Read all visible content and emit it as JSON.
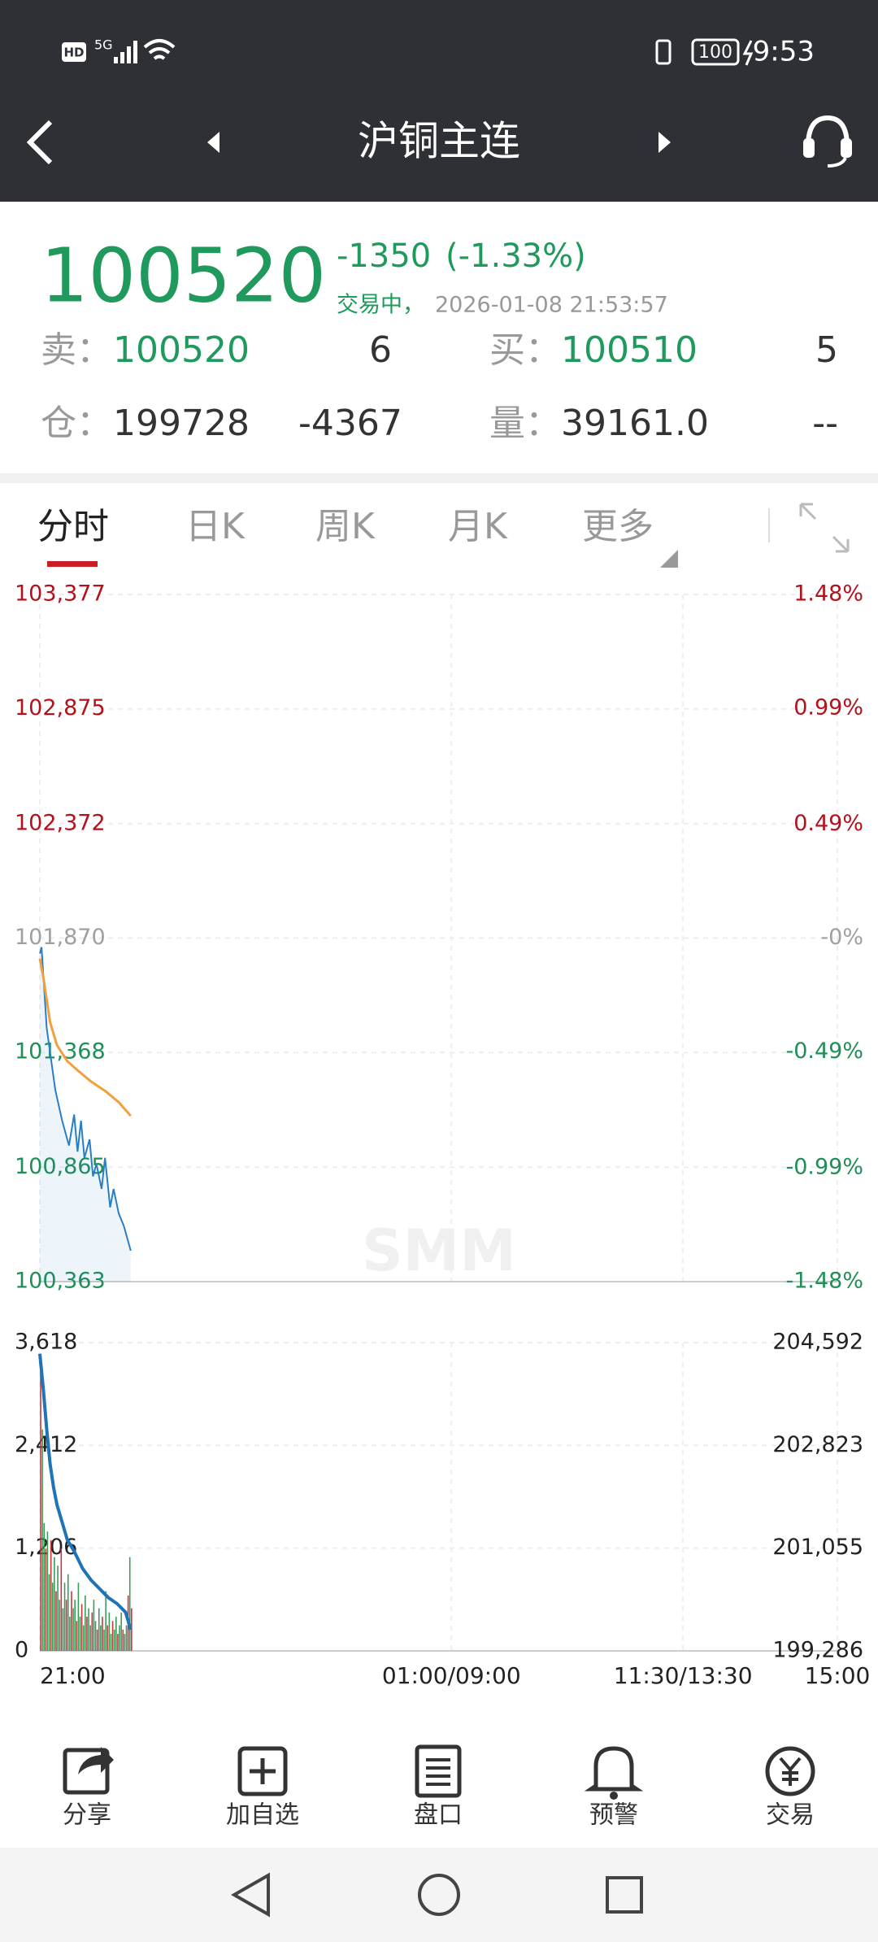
{
  "status_bar": {
    "network": "HD",
    "signal": "5G",
    "battery": "100",
    "time": "9:53"
  },
  "header": {
    "title": "沪铜主连"
  },
  "quote": {
    "price": "100520",
    "change": "-1350",
    "change_pct": "(-1.33%)",
    "status": "交易中，",
    "timestamp": "2026-01-08 21:53:57",
    "ask_label": "卖：",
    "ask_price": "100520",
    "ask_size": "6",
    "bid_label": "买：",
    "bid_price": "100510",
    "bid_size": "5",
    "oi_label": "仓：",
    "oi": "199728",
    "oi_change": "-4367",
    "volume_label": "量：",
    "volume": "39161.0",
    "extra": "--"
  },
  "tabs": [
    "分时",
    "日K",
    "周K",
    "月K",
    "更多"
  ],
  "chart": {
    "xlim": [
      0,
      465
    ],
    "xticks": [
      {
        "value": 0,
        "label": "21:00"
      },
      {
        "value": 240,
        "label": "01:00/09:00"
      },
      {
        "value": 375,
        "label": "11:30/13:30"
      },
      {
        "value": 465,
        "label": "15:00"
      }
    ],
    "watermark": "SMM",
    "up_color": "#b3121c",
    "down_color": "#1f8f57",
    "flat_color": "#a0a0a0",
    "price": {
      "type": "line",
      "ylim": [
        100363,
        103377
      ],
      "yticks": [
        {
          "value": 100363,
          "label": "100,363"
        },
        {
          "value": 100865,
          "label": "100,865"
        },
        {
          "value": 101368,
          "label": "101,368"
        },
        {
          "value": 101870,
          "label": "101,870"
        },
        {
          "value": 102372,
          "label": "102,372"
        },
        {
          "value": 102875,
          "label": "102,875"
        },
        {
          "value": 103377,
          "label": "103,377"
        }
      ],
      "y2lim": [
        -1.48,
        1.48
      ],
      "y2ticks": [
        {
          "value": -1.48,
          "label": "-1.48%"
        },
        {
          "value": -0.99,
          "label": "-0.99%"
        },
        {
          "value": -0.49,
          "label": "-0.49%"
        },
        {
          "value": 0,
          "label": "-0%"
        },
        {
          "value": 0.49,
          "label": "0.49%"
        },
        {
          "value": 0.99,
          "label": "0.99%"
        },
        {
          "value": 1.48,
          "label": "1.48%"
        }
      ],
      "x": [
        0,
        1,
        4,
        7,
        9,
        13,
        17,
        20,
        22,
        24,
        26,
        29,
        31,
        33,
        36,
        38,
        41,
        43,
        46,
        49,
        51,
        53
      ],
      "series": [
        {
          "color": "#2a7ec4",
          "values": [
            101802,
            101830,
            101476,
            101313,
            101205,
            101069,
            100960,
            101096,
            100933,
            101069,
            100906,
            100987,
            100825,
            100880,
            100770,
            100906,
            100689,
            100770,
            100662,
            100607,
            100553,
            100499
          ]
        }
      ],
      "avg": {
        "color": "#f0a03c",
        "x": [
          0,
          2,
          6,
          10,
          16,
          22,
          30,
          38,
          46,
          53
        ],
        "values": [
          101780,
          101700,
          101500,
          101400,
          101330,
          101290,
          101240,
          101200,
          101150,
          101090
        ]
      }
    },
    "volume": {
      "type": "bar",
      "ylim": [
        0,
        3618
      ],
      "yticks": [
        0,
        {
          "value": 1206,
          "label": "1,206"
        },
        {
          "value": 2412,
          "label": "2,412"
        },
        {
          "value": 3618,
          "label": "3,618"
        }
      ],
      "y2lim": [
        199286,
        204592
      ],
      "y2ticks": [
        {
          "value": 199286,
          "label": "199,286"
        },
        {
          "value": 201055,
          "label": "201,055"
        },
        {
          "value": 202823,
          "label": "202,823"
        },
        {
          "value": 204592,
          "label": "204,592"
        }
      ],
      "values": [
        3400,
        2600,
        1500,
        1200,
        1400,
        900,
        1300,
        800,
        1100,
        700,
        1000,
        600,
        1200,
        500,
        800,
        600,
        900,
        400,
        700,
        500,
        600,
        350,
        800,
        400,
        550,
        300,
        650,
        400,
        500,
        300,
        450,
        600,
        350,
        250,
        500,
        300,
        400,
        250,
        700,
        300,
        450,
        200,
        350,
        250,
        400,
        200,
        300,
        450,
        250,
        200,
        300,
        650,
        1100,
        500
      ],
      "colors": [
        "#c8343a",
        "#3a9a5a",
        "#3a9a5a",
        "#c8343a",
        "#3a9a5a",
        "#3a9a5a",
        "#c8343a",
        "#3a9a5a",
        "#3a9a5a",
        "#c8343a",
        "#3a9a5a",
        "#3a9a5a",
        "#c8343a",
        "#3a9a5a",
        "#3a9a5a",
        "#c8343a",
        "#3a9a5a",
        "#3a9a5a",
        "#c8343a",
        "#3a9a5a",
        "#3a9a5a",
        "#c8343a",
        "#3a9a5a",
        "#3a9a5a",
        "#c8343a",
        "#3a9a5a",
        "#3a9a5a",
        "#c8343a",
        "#3a9a5a",
        "#3a9a5a",
        "#c8343a",
        "#3a9a5a",
        "#3a9a5a",
        "#c8343a",
        "#3a9a5a",
        "#3a9a5a",
        "#c8343a",
        "#3a9a5a",
        "#3a9a5a",
        "#c8343a",
        "#3a9a5a",
        "#3a9a5a",
        "#c8343a",
        "#3a9a5a",
        "#3a9a5a",
        "#c8343a",
        "#3a9a5a",
        "#3a9a5a",
        "#c8343a",
        "#3a9a5a",
        "#3a9a5a",
        "#c8343a",
        "#3a9a5a",
        "#c8343a"
      ],
      "oi": {
        "color": "#1f74b8",
        "x": [
          0,
          2,
          4,
          6,
          8,
          10,
          13,
          16,
          20,
          25,
          30,
          35,
          40,
          45,
          50,
          53
        ],
        "values": [
          204400,
          203800,
          203100,
          202500,
          202100,
          201800,
          201500,
          201200,
          201000,
          200700,
          200500,
          200350,
          200200,
          200100,
          199950,
          199650
        ]
      }
    }
  },
  "toolbar": [
    "分享",
    "加自选",
    "盘口",
    "预警",
    "交易"
  ]
}
